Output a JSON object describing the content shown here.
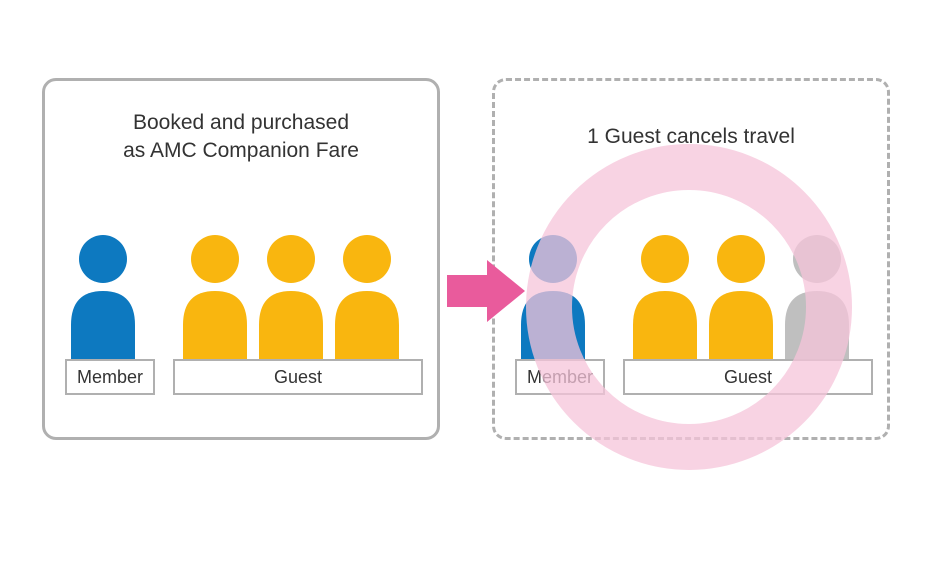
{
  "colors": {
    "member": "#0d79c0",
    "guest": "#f9b60f",
    "guest_cancelled": "#bfbfbf",
    "arrow": "#e95b9c",
    "ring": "#f6c4da",
    "border": "#b0b0b0",
    "text": "#333333",
    "bg": "#ffffff"
  },
  "left_panel": {
    "heading_line1": "Booked and purchased",
    "heading_line2": "as AMC Companion Fare",
    "member_label": "Member",
    "guest_label": "Guest",
    "people": [
      {
        "role": "member",
        "active": true
      },
      {
        "role": "guest",
        "active": true
      },
      {
        "role": "guest",
        "active": true
      },
      {
        "role": "guest",
        "active": true
      }
    ]
  },
  "right_panel": {
    "heading": "1 Guest cancels travel",
    "member_label": "Member",
    "guest_label": "Guest",
    "people": [
      {
        "role": "member",
        "active": true
      },
      {
        "role": "guest",
        "active": true
      },
      {
        "role": "guest",
        "active": true
      },
      {
        "role": "guest",
        "active": false
      }
    ],
    "show_ring": true
  },
  "typography": {
    "heading_fontsize": 21,
    "label_fontsize": 18
  }
}
